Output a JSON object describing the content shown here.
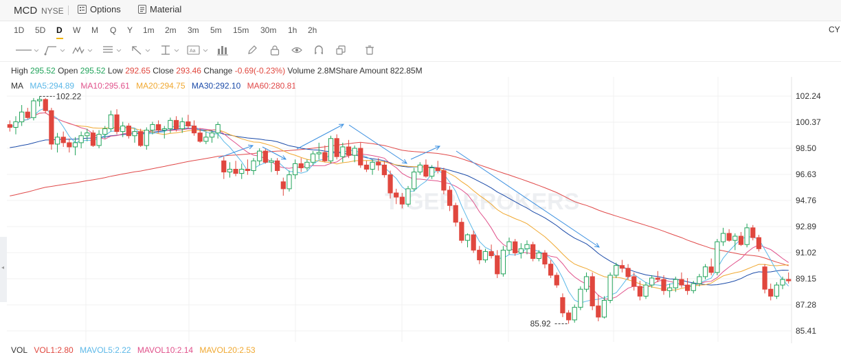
{
  "header": {
    "symbol": "MCD",
    "exchange": "NYSE",
    "options_label": "Options",
    "material_label": "Material"
  },
  "timeframes": [
    "1D",
    "5D",
    "D",
    "W",
    "M",
    "Q",
    "Y",
    "1m",
    "2m",
    "3m",
    "5m",
    "15m",
    "30m",
    "1h",
    "2h"
  ],
  "active_timeframe": "D",
  "currency_label": "CY",
  "tools": [
    "line-tool-icon",
    "trend-tool-icon",
    "wave-tool-icon",
    "fib-tool-icon",
    "arrow-tool-icon",
    "measure-tool-icon",
    "text-tool-icon",
    "bar-tool-icon",
    "pen-icon",
    "lock-icon",
    "eye-icon",
    "magnet-icon",
    "copy-icon",
    "trash-icon"
  ],
  "ohlc": {
    "high_label": "High",
    "high": "295.52",
    "open_label": "Open",
    "open": "295.52",
    "low_label": "Low",
    "low": "292.65",
    "close_label": "Close",
    "close": "293.46",
    "change_label": "Change",
    "change": "-0.69(-0.23%)",
    "volume_label": "Volume",
    "volume": "2.8MShare",
    "amount_label": "Amount",
    "amount": "822.85M"
  },
  "ma_legend": {
    "title": "MA",
    "ma5": "MA5:294.89",
    "ma10": "MA10:295.61",
    "ma20": "MA20:294.75",
    "ma30": "MA30:292.10",
    "ma60": "MA60:280.81"
  },
  "vol_legend": {
    "title": "VOL",
    "vol1": "VOL1:2.80",
    "mavol5": "MAVOL5:2.22",
    "mavol10": "MAVOL10:2.14",
    "mavol20": "MAVOL20:2.53"
  },
  "watermark": "TIGER BROKERS",
  "colors": {
    "up": "#21a35a",
    "down": "#e0473e",
    "ma5": "#5bb8e8",
    "ma10": "#e0508a",
    "ma20": "#f0a830",
    "ma30": "#1a4aa8",
    "ma60": "#e04848",
    "annotation": "#3a8fe0"
  },
  "chart_data": {
    "type": "candlestick",
    "y_ticks": [
      "102.24",
      "100.37",
      "98.50",
      "96.63",
      "94.76",
      "92.89",
      "91.02",
      "89.15",
      "87.28",
      "85.41"
    ],
    "ylim": [
      84.5,
      103.0
    ],
    "high_marker": "102.22",
    "low_marker": "85.92",
    "candles": [
      [
        100.2,
        100.5,
        99.7,
        100.0
      ],
      [
        100.0,
        100.8,
        99.5,
        100.4
      ],
      [
        100.4,
        101.6,
        100.1,
        101.1
      ],
      [
        101.1,
        101.4,
        100.6,
        100.7
      ],
      [
        100.7,
        102.1,
        100.5,
        101.9
      ],
      [
        101.9,
        102.22,
        101.5,
        102.0
      ],
      [
        102.0,
        102.1,
        101.0,
        101.2
      ],
      [
        101.2,
        101.4,
        98.4,
        98.8
      ],
      [
        98.8,
        99.6,
        98.2,
        99.3
      ],
      [
        99.3,
        99.7,
        98.6,
        98.9
      ],
      [
        98.9,
        99.2,
        98.2,
        98.6
      ],
      [
        98.6,
        99.3,
        98.0,
        98.9
      ],
      [
        98.9,
        99.7,
        98.5,
        99.4
      ],
      [
        99.4,
        99.9,
        99.0,
        99.6
      ],
      [
        99.6,
        99.8,
        98.6,
        98.7
      ],
      [
        98.7,
        99.8,
        98.5,
        99.5
      ],
      [
        99.5,
        100.1,
        99.2,
        99.9
      ],
      [
        99.9,
        101.2,
        99.7,
        100.9
      ],
      [
        100.9,
        101.3,
        99.5,
        99.7
      ],
      [
        99.7,
        100.4,
        99.3,
        100.1
      ],
      [
        100.1,
        100.3,
        99.2,
        99.4
      ],
      [
        99.4,
        99.9,
        98.9,
        99.7
      ],
      [
        99.7,
        99.9,
        98.6,
        98.7
      ],
      [
        98.7,
        100.0,
        98.4,
        99.8
      ],
      [
        99.8,
        100.4,
        99.5,
        100.2
      ],
      [
        100.2,
        100.5,
        99.6,
        99.8
      ],
      [
        99.8,
        100.1,
        99.2,
        99.9
      ],
      [
        99.9,
        100.7,
        99.6,
        100.5
      ],
      [
        100.5,
        100.8,
        99.7,
        99.9
      ],
      [
        99.9,
        100.7,
        99.6,
        100.4
      ],
      [
        100.4,
        100.9,
        99.9,
        100.1
      ],
      [
        100.1,
        100.5,
        99.4,
        99.6
      ],
      [
        99.6,
        99.9,
        98.9,
        99.0
      ],
      [
        99.0,
        99.7,
        98.8,
        99.3
      ],
      [
        99.3,
        99.8,
        98.9,
        99.6
      ],
      [
        99.6,
        100.4,
        99.2,
        100.2
      ],
      [
        97.6,
        97.9,
        96.3,
        96.8
      ],
      [
        96.8,
        97.5,
        96.4,
        97.0
      ],
      [
        97.0,
        97.6,
        96.5,
        96.7
      ],
      [
        96.7,
        97.4,
        96.3,
        97.0
      ],
      [
        97.0,
        97.7,
        96.6,
        96.9
      ],
      [
        96.9,
        97.8,
        96.6,
        97.6
      ],
      [
        97.6,
        98.5,
        97.3,
        98.3
      ],
      [
        98.3,
        98.5,
        97.4,
        97.5
      ],
      [
        97.5,
        97.8,
        96.8,
        97.6
      ],
      [
        97.6,
        97.8,
        96.6,
        96.9
      ],
      [
        96.1,
        96.4,
        95.1,
        95.6
      ],
      [
        95.6,
        96.9,
        95.4,
        96.6
      ],
      [
        96.6,
        97.7,
        96.3,
        97.4
      ],
      [
        97.4,
        97.8,
        96.8,
        97.1
      ],
      [
        97.1,
        97.7,
        96.9,
        97.5
      ],
      [
        97.5,
        98.3,
        97.3,
        98.1
      ],
      [
        98.1,
        98.9,
        97.7,
        98.2
      ],
      [
        98.2,
        98.7,
        97.5,
        97.6
      ],
      [
        97.6,
        99.4,
        97.4,
        99.2
      ],
      [
        99.2,
        99.5,
        97.7,
        97.9
      ],
      [
        97.9,
        98.9,
        97.5,
        98.6
      ],
      [
        98.6,
        99.1,
        97.8,
        98.0
      ],
      [
        98.0,
        98.7,
        97.5,
        98.5
      ],
      [
        98.5,
        98.9,
        97.1,
        97.3
      ],
      [
        97.3,
        97.6,
        96.8,
        97.0
      ],
      [
        97.0,
        97.7,
        96.6,
        97.5
      ],
      [
        97.5,
        97.8,
        96.9,
        97.3
      ],
      [
        97.3,
        97.6,
        96.4,
        96.6
      ],
      [
        96.6,
        96.9,
        94.9,
        95.3
      ],
      [
        95.3,
        95.6,
        94.5,
        95.0
      ],
      [
        95.0,
        95.3,
        94.2,
        94.5
      ],
      [
        94.5,
        95.8,
        94.3,
        95.6
      ],
      [
        95.6,
        97.1,
        95.4,
        96.8
      ],
      [
        96.8,
        97.5,
        96.6,
        97.3
      ],
      [
        97.3,
        97.7,
        96.4,
        96.5
      ],
      [
        96.5,
        97.3,
        96.3,
        97.1
      ],
      [
        97.1,
        97.6,
        96.7,
        96.9
      ],
      [
        96.9,
        97.1,
        95.2,
        95.5
      ],
      [
        95.5,
        95.8,
        94.0,
        94.4
      ],
      [
        94.4,
        94.6,
        92.9,
        93.2
      ],
      [
        93.2,
        93.5,
        91.7,
        91.9
      ],
      [
        91.9,
        92.4,
        91.4,
        92.3
      ],
      [
        92.3,
        92.6,
        91.0,
        91.2
      ],
      [
        91.2,
        91.5,
        90.2,
        90.5
      ],
      [
        90.5,
        91.3,
        90.3,
        91.1
      ],
      [
        91.1,
        91.6,
        90.6,
        90.8
      ],
      [
        90.8,
        91.2,
        89.2,
        89.5
      ],
      [
        89.5,
        91.5,
        89.3,
        91.2
      ],
      [
        91.2,
        92.1,
        90.9,
        91.8
      ],
      [
        91.8,
        92.0,
        90.8,
        91.0
      ],
      [
        91.0,
        91.7,
        90.6,
        91.3
      ],
      [
        91.3,
        91.9,
        90.9,
        91.6
      ],
      [
        91.6,
        91.8,
        90.4,
        90.6
      ],
      [
        90.6,
        91.2,
        90.4,
        91.0
      ],
      [
        91.0,
        91.2,
        89.9,
        90.2
      ],
      [
        90.2,
        90.5,
        89.2,
        89.4
      ],
      [
        89.4,
        89.6,
        88.5,
        88.7
      ],
      [
        87.8,
        88.1,
        86.4,
        86.7
      ],
      [
        86.7,
        86.9,
        85.92,
        86.2
      ],
      [
        86.2,
        87.3,
        86.0,
        87.1
      ],
      [
        87.1,
        88.6,
        86.9,
        88.4
      ],
      [
        88.4,
        89.6,
        88.2,
        89.3
      ],
      [
        89.3,
        89.6,
        86.9,
        87.2
      ],
      [
        87.2,
        88.0,
        86.1,
        86.4
      ],
      [
        86.4,
        87.9,
        86.3,
        87.6
      ],
      [
        87.6,
        89.6,
        87.4,
        89.4
      ],
      [
        89.4,
        90.3,
        89.2,
        90.1
      ],
      [
        90.1,
        90.5,
        89.6,
        89.9
      ],
      [
        89.9,
        90.2,
        89.1,
        89.3
      ],
      [
        89.3,
        89.6,
        88.3,
        88.6
      ],
      [
        88.6,
        89.0,
        87.6,
        87.9
      ],
      [
        87.9,
        88.9,
        87.7,
        88.7
      ],
      [
        88.7,
        89.4,
        88.5,
        89.2
      ],
      [
        89.2,
        89.7,
        88.9,
        89.1
      ],
      [
        89.1,
        89.4,
        88.0,
        88.3
      ],
      [
        88.3,
        88.8,
        87.8,
        88.5
      ],
      [
        88.5,
        89.3,
        88.2,
        89.1
      ],
      [
        89.1,
        89.6,
        88.5,
        88.7
      ],
      [
        88.7,
        89.2,
        88.0,
        88.3
      ],
      [
        88.3,
        89.0,
        88.1,
        88.8
      ],
      [
        88.8,
        89.5,
        88.6,
        89.3
      ],
      [
        89.3,
        90.2,
        89.1,
        90.0
      ],
      [
        90.0,
        90.6,
        89.4,
        89.6
      ],
      [
        89.6,
        92.0,
        89.4,
        91.8
      ],
      [
        91.8,
        92.8,
        91.5,
        92.4
      ],
      [
        92.4,
        92.7,
        91.8,
        91.9
      ],
      [
        91.9,
        92.4,
        91.2,
        92.2
      ],
      [
        92.2,
        92.5,
        91.5,
        91.6
      ],
      [
        91.6,
        93.1,
        91.4,
        92.8
      ],
      [
        92.8,
        93.0,
        91.9,
        92.1
      ],
      [
        92.1,
        92.3,
        91.1,
        91.3
      ],
      [
        90.0,
        90.2,
        88.1,
        88.4
      ],
      [
        88.4,
        88.8,
        87.6,
        87.9
      ],
      [
        87.9,
        88.9,
        87.7,
        88.7
      ],
      [
        88.7,
        89.3,
        88.4,
        89.1
      ],
      [
        89.1,
        89.6,
        88.8,
        89.0
      ]
    ]
  }
}
